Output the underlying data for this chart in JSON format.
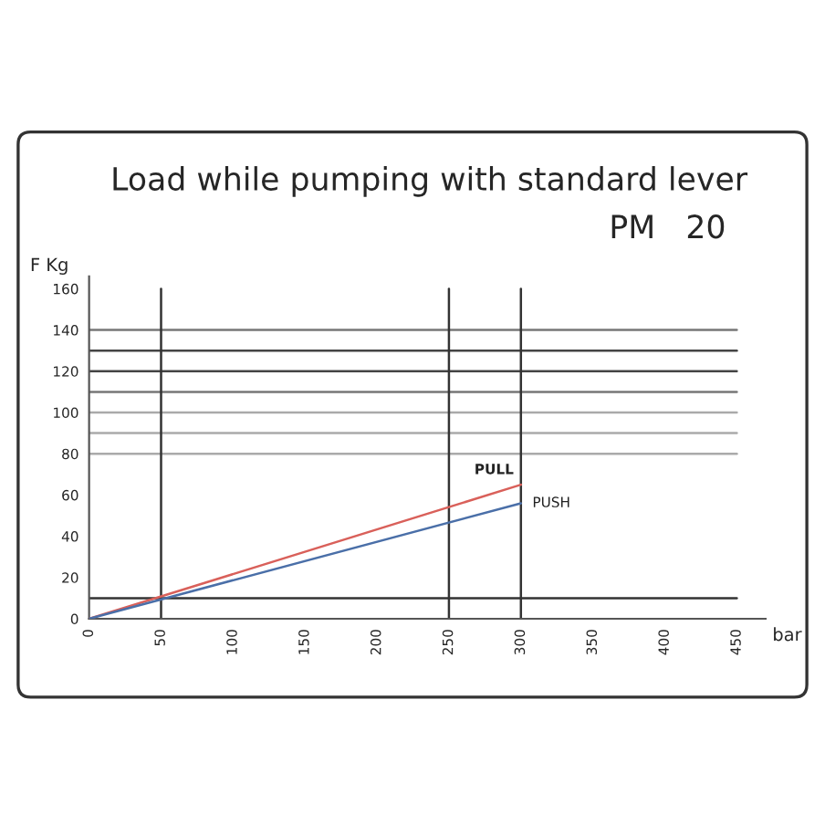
{
  "chart_data": {
    "type": "line",
    "title": "Load while pumping with standard lever",
    "subtitle": "PM   20",
    "xlabel": "bar",
    "ylabel": "F Kg",
    "x": [
      0,
      300
    ],
    "series": [
      {
        "name": "PULL",
        "color": "#d9605a",
        "values": [
          0,
          65
        ]
      },
      {
        "name": "PUSH",
        "color": "#4a6fa8",
        "values": [
          0,
          56
        ]
      }
    ],
    "xlim": [
      0,
      470
    ],
    "ylim": [
      0,
      166
    ],
    "xticks": [
      0,
      50,
      100,
      150,
      200,
      250,
      300,
      350,
      400,
      450
    ],
    "yticks": [
      0,
      20,
      40,
      60,
      80,
      100,
      120,
      140,
      160
    ],
    "ref_lines": [
      {
        "axis": "y",
        "value": 10,
        "label": null,
        "color": "#333333"
      },
      {
        "axis": "y",
        "value": 80,
        "label": null,
        "color": "#aaaaaa"
      },
      {
        "axis": "y",
        "value": 90,
        "label": null,
        "color": "#aaaaaa"
      },
      {
        "axis": "y",
        "value": 100,
        "label": null,
        "color": "#aaaaaa"
      },
      {
        "axis": "y",
        "value": 110,
        "label": null,
        "color": "#777777"
      },
      {
        "axis": "y",
        "value": 120,
        "label": null,
        "color": "#444444"
      },
      {
        "axis": "y",
        "value": 130,
        "label": null,
        "color": "#444444"
      },
      {
        "axis": "y",
        "value": 140,
        "label": null,
        "color": "#777777"
      },
      {
        "axis": "x",
        "value": 50,
        "label": null,
        "color": "#333333"
      },
      {
        "axis": "x",
        "value": 250,
        "label": null,
        "color": "#333333"
      },
      {
        "axis": "x",
        "value": 300,
        "label": null,
        "color": "#333333"
      }
    ],
    "grid": false,
    "legend": false,
    "marker": "none",
    "line_style": "solid"
  }
}
